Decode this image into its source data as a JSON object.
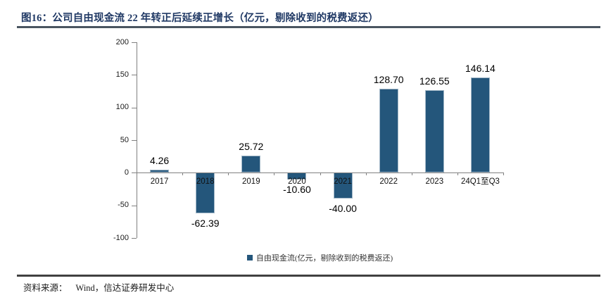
{
  "header": {
    "title": "图16：公司自由现金流 22 年转正后延续正增长（亿元，剔除收到的税费返还）"
  },
  "chart_data": {
    "type": "bar",
    "title": "图16：公司自由现金流 22 年转正后延续正增长（亿元，剔除收到的税费返还）",
    "categories": [
      "2017",
      "2018",
      "2019",
      "2020",
      "2021",
      "2022",
      "2023",
      "24Q1至Q3"
    ],
    "values": [
      4.26,
      -62.39,
      25.72,
      -10.6,
      -40.0,
      128.7,
      126.55,
      146.14
    ],
    "value_labels": [
      "4.26",
      "-62.39",
      "25.72",
      "-10.60",
      "-40.00",
      "128.70",
      "126.55",
      "146.14"
    ],
    "yticks": [
      200,
      150,
      100,
      50,
      0,
      -50,
      -100
    ],
    "ylim": [
      -100,
      200
    ],
    "xlabel": "",
    "ylabel": "",
    "grid": false,
    "legend": {
      "label": "自由现金流(亿元，剔除收到的税费返还)",
      "position": "bottom-center"
    },
    "colors": {
      "bar_fill": "#24567B",
      "bar_border": "#A3B8C8",
      "axis": "#808080",
      "tick_text": "#1a1a1a",
      "data_label_text": "#000000"
    }
  },
  "footer": {
    "source_label": "资料来源：",
    "source_text": "Wind，信达证券研发中心"
  },
  "colors": {
    "title_text": "#1F3864",
    "title_rule": "#4A5560",
    "footer_rule": "#404040"
  }
}
